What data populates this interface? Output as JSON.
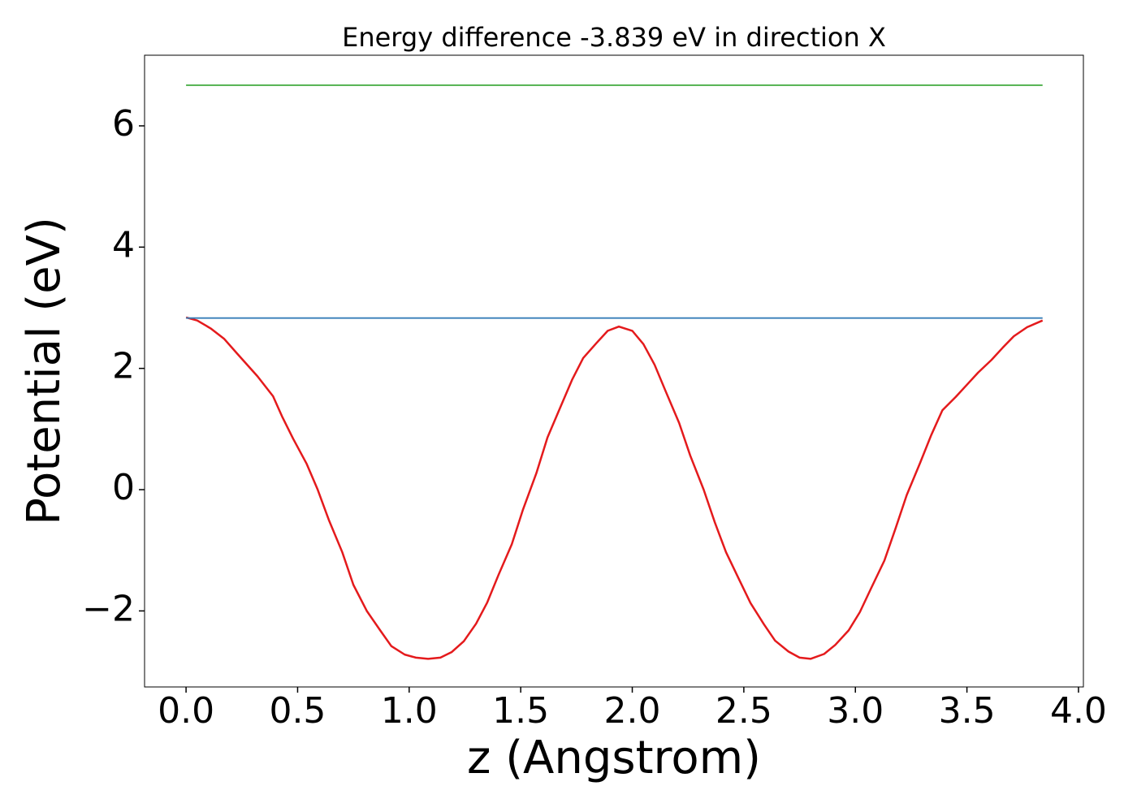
{
  "chart_data": {
    "type": "line",
    "title": "Energy difference -3.839 eV in direction X",
    "x_label": "z (Angstrom)",
    "y_label": "Potential (eV)",
    "xlim": [
      -0.186,
      4.022
    ],
    "ylim": [
      -3.254,
      7.165
    ],
    "xticks": [
      {
        "value": 0,
        "label": "0.0"
      },
      {
        "value": 0.5,
        "label": "0.5"
      },
      {
        "value": 1,
        "label": "1.0"
      },
      {
        "value": 1.5,
        "label": "1.5"
      },
      {
        "value": 2,
        "label": "2.0"
      },
      {
        "value": 2.5,
        "label": "2.5"
      },
      {
        "value": 3,
        "label": "3.0"
      },
      {
        "value": 3.5,
        "label": "3.5"
      },
      {
        "value": 4,
        "label": "4.0"
      }
    ],
    "yticks": [
      {
        "value": -2,
        "label": "−2"
      },
      0,
      2,
      4,
      6
    ],
    "grid": false,
    "series": [
      {
        "color": "#e41a1c",
        "x": [
          0,
          0.05,
          0.11,
          0.17,
          0.23,
          0.32,
          0.39,
          0.43,
          0.48,
          0.54,
          0.59,
          0.64,
          0.7,
          0.75,
          0.81,
          0.87,
          0.92,
          0.98,
          1.03,
          1.085,
          1.14,
          1.19,
          1.245,
          1.3,
          1.35,
          1.4,
          1.46,
          1.51,
          1.57,
          1.62,
          1.68,
          1.73,
          1.78,
          1.84,
          1.89,
          1.94,
          2.0,
          2.05,
          2.1,
          2.15,
          2.21,
          2.26,
          2.32,
          2.37,
          2.42,
          2.48,
          2.53,
          2.59,
          2.64,
          2.7,
          2.75,
          2.8,
          2.86,
          2.91,
          2.97,
          3.02,
          3.07,
          3.13,
          3.18,
          3.23,
          3.29,
          3.34,
          3.39,
          3.45,
          3.5,
          3.55,
          3.61,
          3.66,
          3.71,
          3.77,
          3.839
        ],
        "values": [
          2.84,
          2.79,
          2.66,
          2.49,
          2.24,
          1.87,
          1.54,
          1.21,
          0.84,
          0.43,
          0.0,
          -0.5,
          -1.03,
          -1.57,
          -2.0,
          -2.32,
          -2.58,
          -2.72,
          -2.77,
          -2.79,
          -2.77,
          -2.68,
          -2.5,
          -2.21,
          -1.86,
          -1.41,
          -0.9,
          -0.33,
          0.27,
          0.86,
          1.38,
          1.81,
          2.17,
          2.42,
          2.62,
          2.69,
          2.62,
          2.4,
          2.06,
          1.62,
          1.1,
          0.56,
          0.0,
          -0.54,
          -1.03,
          -1.49,
          -1.87,
          -2.22,
          -2.49,
          -2.67,
          -2.77,
          -2.79,
          -2.71,
          -2.56,
          -2.32,
          -2.02,
          -1.63,
          -1.17,
          -0.64,
          -0.09,
          0.44,
          0.9,
          1.31,
          1.53,
          1.73,
          1.93,
          2.14,
          2.34,
          2.53,
          2.68,
          2.79
        ]
      },
      {
        "color": "#377eb8",
        "x": [
          0,
          3.839
        ],
        "values": [
          2.83,
          2.83
        ]
      },
      {
        "color": "#4daf4a",
        "x": [
          0,
          3.839
        ],
        "values": [
          6.67,
          6.67
        ]
      }
    ]
  }
}
